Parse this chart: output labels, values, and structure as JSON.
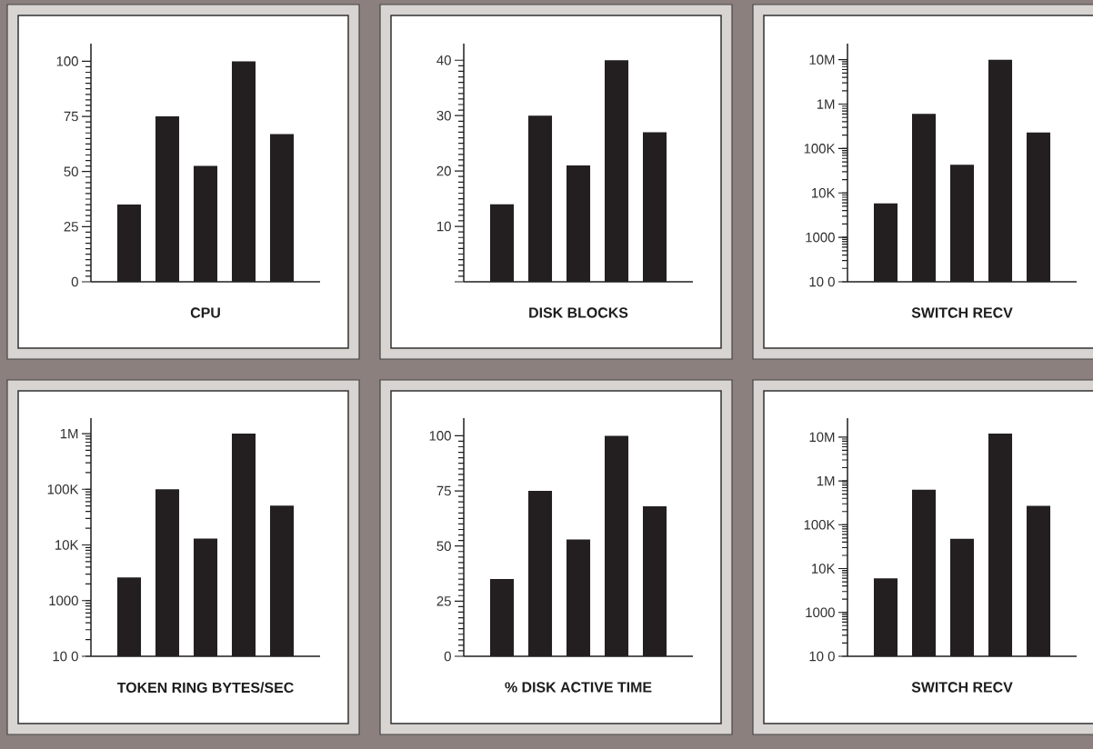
{
  "chart_data": [
    {
      "type": "bar",
      "categories": [
        null,
        null,
        null,
        null,
        null
      ],
      "values": [
        35,
        75,
        52.5,
        100,
        67
      ],
      "color": "#231f20",
      "xlabel": "CPU",
      "ylim": [
        0,
        108
      ],
      "yticks": [
        0,
        25,
        50,
        75,
        100
      ],
      "tick_labels": "y"
    },
    {
      "type": "bar",
      "categories": [
        null,
        null,
        null,
        null,
        null
      ],
      "values": [
        14,
        30,
        21,
        40,
        27
      ],
      "color": "#231f20",
      "xlabel": "DISK BLOCKS",
      "ylim": [
        0,
        43
      ],
      "yticks": [
        {
          "value": 0,
          "label": null
        },
        10,
        20,
        30,
        40
      ],
      "tick_labels": "y"
    },
    {
      "type": "bar",
      "categories": [
        null,
        null,
        null,
        null,
        null
      ],
      "values": [
        5800,
        600000,
        43000,
        10000000,
        230000
      ],
      "color": "#231f20",
      "xlabel": "SWITCH RECV",
      "log": true,
      "ylim": [
        100,
        23000000
      ],
      "yticks": [
        {
          "value": 100,
          "label": "10 0"
        },
        1000,
        {
          "value": 10000,
          "label": "10K"
        },
        {
          "value": 100000,
          "label": "100K"
        },
        {
          "value": 1000000,
          "label": "1M"
        },
        {
          "value": 10000000,
          "label": "10M"
        }
      ],
      "tick_labels": "y"
    },
    {
      "type": "bar",
      "categories": [
        null,
        null,
        null,
        null,
        null
      ],
      "values": [
        2600,
        100000,
        13000,
        1000000,
        51000
      ],
      "color": "#231f20",
      "xlabel": "TOKEN RING BYTES/SEC",
      "log": true,
      "ylim": [
        100,
        1900000
      ],
      "yticks": [
        {
          "value": 100,
          "label": "10 0"
        },
        1000,
        {
          "value": 10000,
          "label": "10K"
        },
        {
          "value": 100000,
          "label": "100K"
        },
        {
          "value": 1000000,
          "label": "1M"
        }
      ],
      "tick_labels": "y"
    },
    {
      "type": "bar",
      "categories": [
        null,
        null,
        null,
        null,
        null
      ],
      "values": [
        35,
        75,
        53,
        100,
        68
      ],
      "color": "#231f20",
      "xlabel": "% DISK ACTIVE TIME",
      "ylim": [
        0,
        108
      ],
      "yticks": [
        0,
        25,
        50,
        75,
        100
      ],
      "tick_labels": "y"
    },
    {
      "type": "bar",
      "categories": [
        null,
        null,
        null,
        null,
        null
      ],
      "values": [
        6000,
        630000,
        48000,
        12000000,
        270000
      ],
      "color": "#231f20",
      "xlabel": "SWITCH RECV",
      "log": true,
      "ylim": [
        100,
        27000000
      ],
      "yticks": [
        {
          "value": 100,
          "label": "10 0"
        },
        1000,
        {
          "value": 10000,
          "label": "10K"
        },
        {
          "value": 100000,
          "label": "100K"
        },
        {
          "value": 1000000,
          "label": "1M"
        },
        {
          "value": 10000000,
          "label": "10M"
        }
      ],
      "tick_labels": "y"
    }
  ]
}
